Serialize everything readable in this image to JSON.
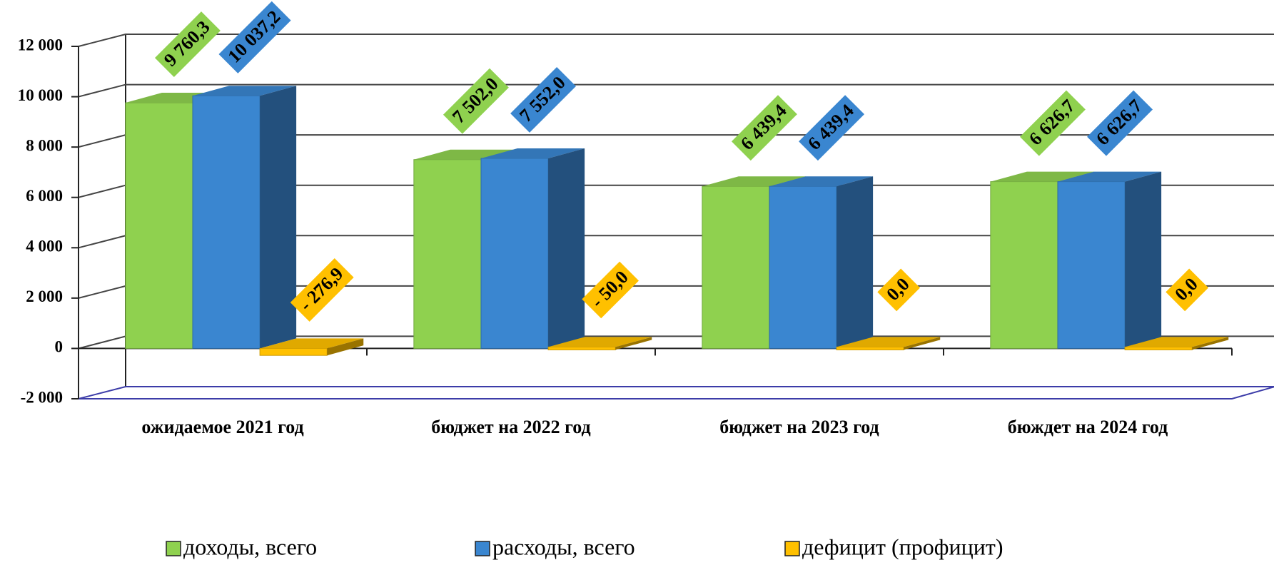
{
  "chart_data": {
    "type": "bar3d",
    "categories": [
      "ожидаемое 2021 год",
      "бюджет на 2022 год",
      "бюджет на 2023 год",
      "бюждет на 2024 год"
    ],
    "series": [
      {
        "name": "доходы, всего",
        "color": "#8fd14f",
        "values": [
          9760.3,
          7502.0,
          6439.4,
          6626.7
        ],
        "value_labels": [
          "9 760,3",
          "7 502,0",
          "6 439,4",
          "6 626,7"
        ]
      },
      {
        "name": "расходы, всего",
        "color": "#3a86d0",
        "values": [
          10037.2,
          7552.0,
          6439.4,
          6626.7
        ],
        "value_labels": [
          "10 037,2",
          "7 552,0",
          "6 439,4",
          "6 626,7"
        ]
      },
      {
        "name": "дефицит (профицит)",
        "color": "#ffc000",
        "values": [
          -276.9,
          -50.0,
          0.0,
          0.0
        ],
        "value_labels": [
          "- 276,9",
          "- 50,0",
          "0,0",
          "0,0"
        ]
      }
    ],
    "ylim": [
      -2000,
      12000
    ],
    "yticks": [
      {
        "value": -2000,
        "label": "-2 000"
      },
      0,
      {
        "value": 2000,
        "label": "2 000"
      },
      {
        "value": 4000,
        "label": "4 000"
      },
      {
        "value": 6000,
        "label": "6 000"
      },
      {
        "value": 8000,
        "label": "8 000"
      },
      {
        "value": 10000,
        "label": "10 000"
      },
      {
        "value": 12000,
        "label": "12 000"
      }
    ],
    "grid": true,
    "legend": "bottom"
  }
}
